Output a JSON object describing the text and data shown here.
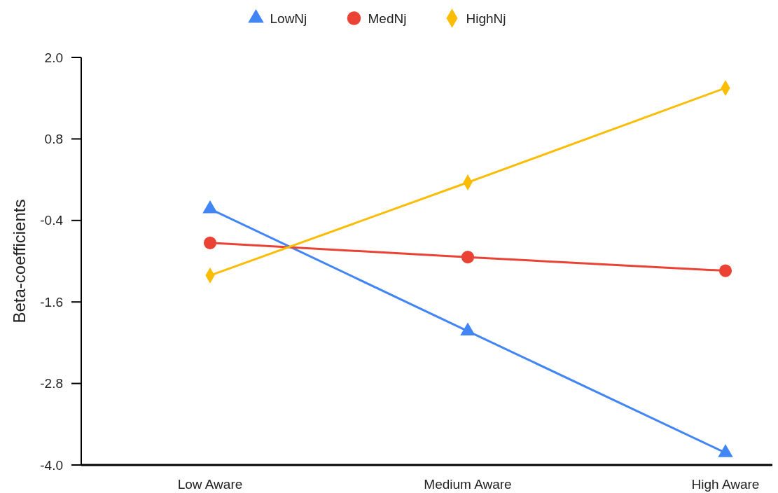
{
  "chart_data": {
    "type": "line",
    "ylabel": "Beta-coefficients",
    "categories": [
      "Low Aware",
      "Medium Aware",
      "High Aware"
    ],
    "series": [
      {
        "name": "LowNj",
        "color": "#4285f4",
        "marker": "triangle",
        "values": [
          -0.23,
          -2.03,
          -3.82
        ]
      },
      {
        "name": "MedNj",
        "color": "#ea4335",
        "marker": "circle",
        "values": [
          -0.73,
          -0.94,
          -1.14
        ]
      },
      {
        "name": "HighNj",
        "color": "#fbbc04",
        "marker": "diamond",
        "values": [
          -1.21,
          0.16,
          1.55
        ]
      }
    ],
    "ylim": [
      -4,
      2
    ],
    "yticks": [
      {
        "value": 2,
        "label": "2.0"
      },
      0.8,
      -0.4,
      -1.6,
      -2.8,
      {
        "value": -4,
        "label": "-4.0"
      }
    ],
    "grid": false,
    "legend": "top",
    "line_style": "solid"
  }
}
